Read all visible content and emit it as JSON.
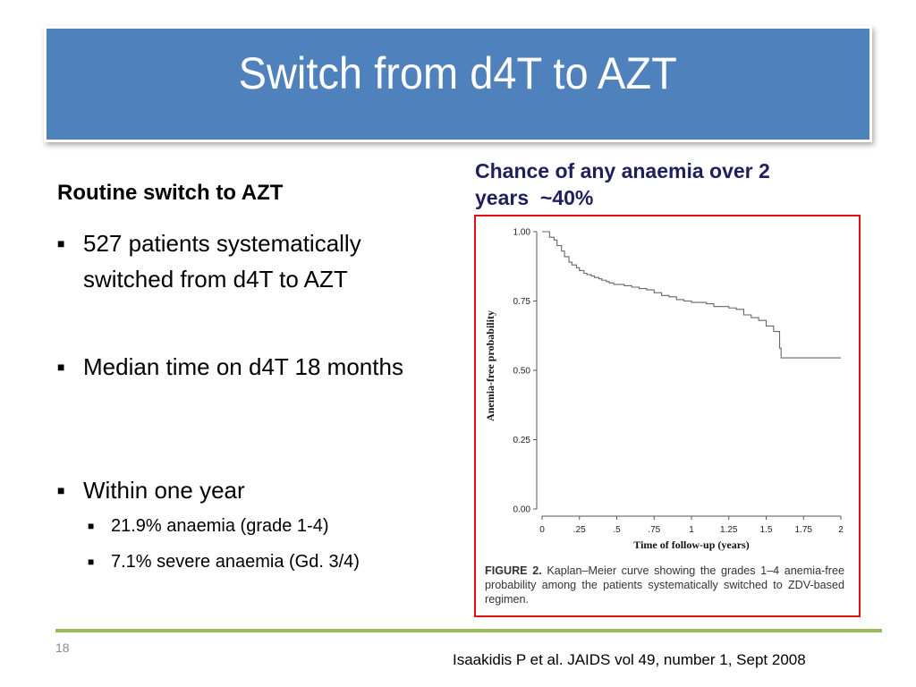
{
  "slide": {
    "title": "Switch from d4T to AZT",
    "page_number": "18",
    "citation": "Isaakidis P et al. JAIDS vol 49, number 1, Sept 2008"
  },
  "left": {
    "heading": "Routine switch to AZT",
    "bullets": [
      "527 patients systematically switched from d4T to AZT",
      "Median time on d4T 18 months",
      "Within one year"
    ],
    "sub_bullets": [
      "21.9% anaemia (grade 1-4)",
      "7.1% severe anaemia (Gd. 3/4)"
    ]
  },
  "right": {
    "heading_line1": "Chance of any anaemia over 2",
    "heading_line2": "years  ~40%",
    "figure_label": "FIGURE 2.",
    "caption": "Kaplan–Meier curve showing the grades 1–4 anemia-free probability among the patients systematically switched to ZDV-based regimen."
  },
  "colors": {
    "title_bg": "#4f81bd",
    "highlight_border": "#e01010",
    "divider": "#9bbb59",
    "heading_text": "#1f1f5e"
  },
  "chart_data": {
    "type": "line",
    "subtype": "kaplan-meier step curve",
    "xlabel": "Time of follow-up (years)",
    "ylabel": "Anemia-free probability",
    "xlim": [
      0,
      2
    ],
    "ylim": [
      0,
      1
    ],
    "x_ticks": [
      "0",
      ".25",
      ".5",
      ".75",
      "1",
      "1.25",
      "1.5",
      "1.75",
      "2"
    ],
    "y_ticks": [
      "0.00",
      "0.25",
      "0.50",
      "0.75",
      "1.00"
    ],
    "series": [
      {
        "x": [
          0,
          0.03,
          0.05,
          0.08,
          0.1,
          0.13,
          0.15,
          0.18,
          0.2,
          0.23,
          0.25,
          0.28,
          0.3,
          0.33,
          0.35,
          0.38,
          0.4,
          0.43,
          0.45,
          0.48,
          0.5,
          0.55,
          0.6,
          0.65,
          0.7,
          0.75,
          0.8,
          0.85,
          0.9,
          0.95,
          1.0,
          1.05,
          1.1,
          1.15,
          1.2,
          1.25,
          1.3,
          1.35,
          1.4,
          1.45,
          1.5,
          1.55,
          1.58,
          1.59,
          1.6,
          1.65,
          1.7,
          1.8,
          1.9,
          2.0
        ],
        "y": [
          1.0,
          1.0,
          0.98,
          0.97,
          0.95,
          0.93,
          0.91,
          0.89,
          0.88,
          0.87,
          0.86,
          0.85,
          0.845,
          0.84,
          0.835,
          0.83,
          0.825,
          0.82,
          0.815,
          0.81,
          0.81,
          0.805,
          0.8,
          0.795,
          0.79,
          0.78,
          0.77,
          0.765,
          0.755,
          0.75,
          0.745,
          0.745,
          0.74,
          0.73,
          0.73,
          0.725,
          0.72,
          0.7,
          0.69,
          0.68,
          0.66,
          0.64,
          0.64,
          0.58,
          0.545,
          0.545,
          0.545,
          0.545,
          0.545,
          0.545
        ]
      }
    ]
  }
}
